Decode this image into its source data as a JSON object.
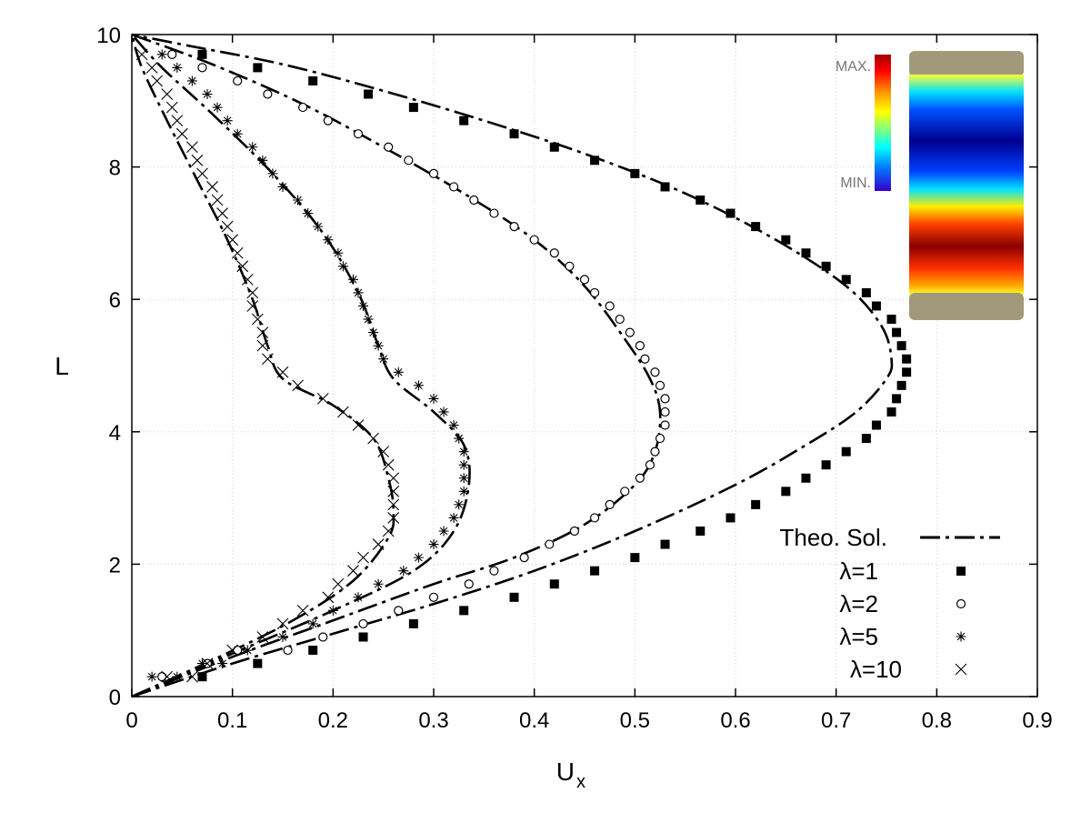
{
  "chart_data": {
    "type": "scatter",
    "title": "",
    "xlabel": "U",
    "xlabel_subscript": "x",
    "ylabel": "L",
    "xlim": [
      0,
      0.9
    ],
    "ylim": [
      0,
      10
    ],
    "xticks": [
      "0",
      "0.1",
      "0.2",
      "0.3",
      "0.4",
      "0.5",
      "0.6",
      "0.7",
      "0.8",
      "0.9"
    ],
    "yticks": [
      "0",
      "2",
      "4",
      "6",
      "8",
      "10"
    ],
    "grid": true,
    "legend_position": "bottom-right",
    "theory_label": "Theo. Sol.",
    "inset": {
      "max_label": "MAX.",
      "min_label": "MIN.",
      "colormap": [
        "#7f0000",
        "#ff0000",
        "#ff8000",
        "#ffff00",
        "#80ff80",
        "#00ffff",
        "#0080ff",
        "#0000ff",
        "#000080"
      ]
    },
    "series": [
      {
        "name": "λ=1",
        "marker": "filled-square",
        "theory": [
          [
            0,
            0
          ],
          [
            0.1,
            0.5
          ],
          [
            0.2,
            0.95
          ],
          [
            0.3,
            1.4
          ],
          [
            0.4,
            1.9
          ],
          [
            0.5,
            2.5
          ],
          [
            0.6,
            3.2
          ],
          [
            0.67,
            3.8
          ],
          [
            0.72,
            4.3
          ],
          [
            0.75,
            4.8
          ],
          [
            0.755,
            5.1
          ],
          [
            0.745,
            5.6
          ],
          [
            0.71,
            6.2
          ],
          [
            0.64,
            6.9
          ],
          [
            0.55,
            7.6
          ],
          [
            0.45,
            8.2
          ],
          [
            0.35,
            8.7
          ],
          [
            0.25,
            9.15
          ],
          [
            0.15,
            9.55
          ],
          [
            0.05,
            9.85
          ],
          [
            0,
            10
          ]
        ],
        "points": [
          [
            0.07,
            0.3
          ],
          [
            0.125,
            0.5
          ],
          [
            0.18,
            0.7
          ],
          [
            0.23,
            0.9
          ],
          [
            0.28,
            1.1
          ],
          [
            0.33,
            1.3
          ],
          [
            0.38,
            1.5
          ],
          [
            0.42,
            1.7
          ],
          [
            0.46,
            1.9
          ],
          [
            0.5,
            2.1
          ],
          [
            0.53,
            2.3
          ],
          [
            0.565,
            2.5
          ],
          [
            0.595,
            2.7
          ],
          [
            0.62,
            2.9
          ],
          [
            0.65,
            3.1
          ],
          [
            0.67,
            3.3
          ],
          [
            0.69,
            3.5
          ],
          [
            0.71,
            3.7
          ],
          [
            0.73,
            3.9
          ],
          [
            0.74,
            4.1
          ],
          [
            0.755,
            4.3
          ],
          [
            0.76,
            4.5
          ],
          [
            0.765,
            4.7
          ],
          [
            0.77,
            4.9
          ],
          [
            0.77,
            5.1
          ],
          [
            0.765,
            5.3
          ],
          [
            0.76,
            5.5
          ],
          [
            0.755,
            5.7
          ],
          [
            0.74,
            5.9
          ],
          [
            0.73,
            6.1
          ],
          [
            0.71,
            6.3
          ],
          [
            0.69,
            6.5
          ],
          [
            0.67,
            6.7
          ],
          [
            0.65,
            6.9
          ],
          [
            0.62,
            7.1
          ],
          [
            0.595,
            7.3
          ],
          [
            0.565,
            7.5
          ],
          [
            0.53,
            7.7
          ],
          [
            0.5,
            7.9
          ],
          [
            0.46,
            8.1
          ],
          [
            0.42,
            8.3
          ],
          [
            0.38,
            8.5
          ],
          [
            0.33,
            8.7
          ],
          [
            0.28,
            8.9
          ],
          [
            0.235,
            9.1
          ],
          [
            0.18,
            9.3
          ],
          [
            0.125,
            9.5
          ],
          [
            0.07,
            9.7
          ]
        ]
      },
      {
        "name": "λ=2",
        "marker": "open-circle",
        "theory": [
          [
            0,
            0
          ],
          [
            0.1,
            0.6
          ],
          [
            0.2,
            1.15
          ],
          [
            0.3,
            1.7
          ],
          [
            0.38,
            2.1
          ],
          [
            0.45,
            2.6
          ],
          [
            0.5,
            3.2
          ],
          [
            0.52,
            3.7
          ],
          [
            0.525,
            4.3
          ],
          [
            0.515,
            4.8
          ],
          [
            0.49,
            5.4
          ],
          [
            0.45,
            6.2
          ],
          [
            0.4,
            6.9
          ],
          [
            0.33,
            7.6
          ],
          [
            0.25,
            8.3
          ],
          [
            0.17,
            8.95
          ],
          [
            0.08,
            9.55
          ],
          [
            0,
            10
          ]
        ],
        "points": [
          [
            0.03,
            0.3
          ],
          [
            0.075,
            0.5
          ],
          [
            0.105,
            0.7
          ],
          [
            0.155,
            0.7
          ],
          [
            0.19,
            0.9
          ],
          [
            0.23,
            1.1
          ],
          [
            0.265,
            1.3
          ],
          [
            0.3,
            1.5
          ],
          [
            0.335,
            1.7
          ],
          [
            0.36,
            1.9
          ],
          [
            0.39,
            2.1
          ],
          [
            0.415,
            2.3
          ],
          [
            0.44,
            2.5
          ],
          [
            0.46,
            2.7
          ],
          [
            0.475,
            2.9
          ],
          [
            0.49,
            3.1
          ],
          [
            0.505,
            3.3
          ],
          [
            0.515,
            3.5
          ],
          [
            0.52,
            3.7
          ],
          [
            0.525,
            3.9
          ],
          [
            0.53,
            4.1
          ],
          [
            0.53,
            4.3
          ],
          [
            0.53,
            4.5
          ],
          [
            0.525,
            4.7
          ],
          [
            0.52,
            4.9
          ],
          [
            0.51,
            5.1
          ],
          [
            0.505,
            5.3
          ],
          [
            0.495,
            5.5
          ],
          [
            0.485,
            5.7
          ],
          [
            0.475,
            5.9
          ],
          [
            0.46,
            6.1
          ],
          [
            0.45,
            6.3
          ],
          [
            0.435,
            6.5
          ],
          [
            0.42,
            6.7
          ],
          [
            0.4,
            6.9
          ],
          [
            0.38,
            7.1
          ],
          [
            0.36,
            7.3
          ],
          [
            0.34,
            7.5
          ],
          [
            0.32,
            7.7
          ],
          [
            0.3,
            7.9
          ],
          [
            0.275,
            8.1
          ],
          [
            0.255,
            8.3
          ],
          [
            0.225,
            8.5
          ],
          [
            0.195,
            8.7
          ],
          [
            0.17,
            8.9
          ],
          [
            0.135,
            9.1
          ],
          [
            0.105,
            9.3
          ],
          [
            0.07,
            9.5
          ],
          [
            0.04,
            9.7
          ]
        ]
      },
      {
        "name": "λ=5",
        "marker": "star",
        "theory": [
          [
            0,
            0
          ],
          [
            0.1,
            0.65
          ],
          [
            0.2,
            1.3
          ],
          [
            0.28,
            1.9
          ],
          [
            0.32,
            2.5
          ],
          [
            0.335,
            3.2
          ],
          [
            0.33,
            3.8
          ],
          [
            0.3,
            4.3
          ],
          [
            0.26,
            4.8
          ],
          [
            0.245,
            5.3
          ],
          [
            0.225,
            6.1
          ],
          [
            0.19,
            7.0
          ],
          [
            0.14,
            7.9
          ],
          [
            0.08,
            8.8
          ],
          [
            0.03,
            9.5
          ],
          [
            0,
            10
          ]
        ],
        "points": [
          [
            0.02,
            0.3
          ],
          [
            0.045,
            0.3
          ],
          [
            0.07,
            0.5
          ],
          [
            0.09,
            0.5
          ],
          [
            0.115,
            0.7
          ],
          [
            0.15,
            0.9
          ],
          [
            0.18,
            1.1
          ],
          [
            0.2,
            1.3
          ],
          [
            0.225,
            1.5
          ],
          [
            0.245,
            1.7
          ],
          [
            0.27,
            1.9
          ],
          [
            0.285,
            2.1
          ],
          [
            0.3,
            2.3
          ],
          [
            0.31,
            2.5
          ],
          [
            0.32,
            2.7
          ],
          [
            0.325,
            2.9
          ],
          [
            0.33,
            3.1
          ],
          [
            0.33,
            3.3
          ],
          [
            0.33,
            3.5
          ],
          [
            0.33,
            3.7
          ],
          [
            0.325,
            3.9
          ],
          [
            0.32,
            4.1
          ],
          [
            0.31,
            4.3
          ],
          [
            0.3,
            4.5
          ],
          [
            0.285,
            4.7
          ],
          [
            0.265,
            4.9
          ],
          [
            0.25,
            5.1
          ],
          [
            0.245,
            5.3
          ],
          [
            0.24,
            5.5
          ],
          [
            0.235,
            5.7
          ],
          [
            0.23,
            5.9
          ],
          [
            0.225,
            6.1
          ],
          [
            0.22,
            6.3
          ],
          [
            0.21,
            6.5
          ],
          [
            0.205,
            6.7
          ],
          [
            0.195,
            6.9
          ],
          [
            0.185,
            7.1
          ],
          [
            0.175,
            7.3
          ],
          [
            0.165,
            7.5
          ],
          [
            0.15,
            7.7
          ],
          [
            0.14,
            7.9
          ],
          [
            0.13,
            8.1
          ],
          [
            0.12,
            8.3
          ],
          [
            0.105,
            8.5
          ],
          [
            0.095,
            8.7
          ],
          [
            0.085,
            8.9
          ],
          [
            0.075,
            9.1
          ],
          [
            0.06,
            9.3
          ],
          [
            0.045,
            9.5
          ],
          [
            0.03,
            9.7
          ]
        ]
      },
      {
        "name": "λ=10",
        "marker": "cross",
        "theory": [
          [
            0,
            0
          ],
          [
            0.08,
            0.55
          ],
          [
            0.16,
            1.15
          ],
          [
            0.22,
            1.75
          ],
          [
            0.255,
            2.4
          ],
          [
            0.26,
            2.8
          ],
          [
            0.255,
            3.3
          ],
          [
            0.24,
            3.9
          ],
          [
            0.2,
            4.4
          ],
          [
            0.15,
            4.8
          ],
          [
            0.135,
            5.3
          ],
          [
            0.12,
            6.0
          ],
          [
            0.095,
            6.9
          ],
          [
            0.065,
            7.8
          ],
          [
            0.035,
            8.7
          ],
          [
            0.01,
            9.5
          ],
          [
            0,
            10
          ]
        ],
        "points": [
          [
            0.035,
            0.3
          ],
          [
            0.06,
            0.3
          ],
          [
            0.075,
            0.5
          ],
          [
            0.1,
            0.7
          ],
          [
            0.13,
            0.9
          ],
          [
            0.15,
            1.1
          ],
          [
            0.17,
            1.3
          ],
          [
            0.195,
            1.5
          ],
          [
            0.205,
            1.7
          ],
          [
            0.22,
            1.9
          ],
          [
            0.23,
            2.1
          ],
          [
            0.245,
            2.3
          ],
          [
            0.255,
            2.5
          ],
          [
            0.26,
            2.7
          ],
          [
            0.26,
            2.9
          ],
          [
            0.26,
            3.1
          ],
          [
            0.26,
            3.3
          ],
          [
            0.255,
            3.5
          ],
          [
            0.25,
            3.7
          ],
          [
            0.24,
            3.9
          ],
          [
            0.225,
            4.1
          ],
          [
            0.21,
            4.3
          ],
          [
            0.19,
            4.5
          ],
          [
            0.165,
            4.7
          ],
          [
            0.15,
            4.9
          ],
          [
            0.135,
            5.1
          ],
          [
            0.13,
            5.3
          ],
          [
            0.13,
            5.5
          ],
          [
            0.125,
            5.7
          ],
          [
            0.12,
            5.9
          ],
          [
            0.12,
            6.1
          ],
          [
            0.115,
            6.3
          ],
          [
            0.11,
            6.5
          ],
          [
            0.105,
            6.7
          ],
          [
            0.1,
            6.9
          ],
          [
            0.095,
            7.1
          ],
          [
            0.09,
            7.3
          ],
          [
            0.085,
            7.5
          ],
          [
            0.08,
            7.7
          ],
          [
            0.07,
            7.9
          ],
          [
            0.065,
            8.1
          ],
          [
            0.06,
            8.3
          ],
          [
            0.05,
            8.5
          ],
          [
            0.045,
            8.7
          ],
          [
            0.04,
            8.9
          ],
          [
            0.035,
            9.1
          ],
          [
            0.025,
            9.3
          ],
          [
            0.02,
            9.5
          ],
          [
            0.01,
            9.7
          ]
        ]
      }
    ]
  }
}
